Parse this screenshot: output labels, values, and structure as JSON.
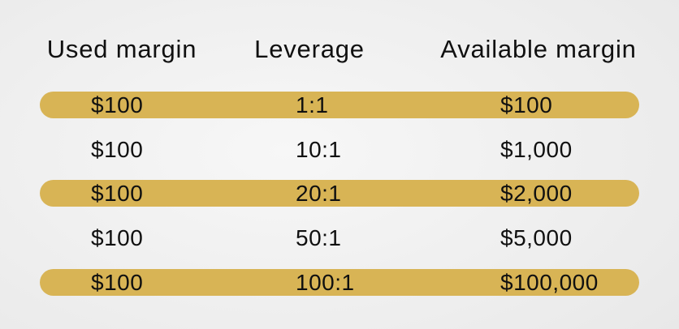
{
  "colors": {
    "gold": "#d8b455",
    "text": "#101010",
    "bg_center": "#f7f7f7",
    "bg_edge": "#dedede"
  },
  "chart_data": {
    "type": "table",
    "title": "",
    "columns": [
      "Used margin",
      "Leverage",
      "Available margin"
    ],
    "rows": [
      [
        "$100",
        "1:1",
        "$100"
      ],
      [
        "$100",
        "10:1",
        "$1,000"
      ],
      [
        "$100",
        "20:1",
        "$2,000"
      ],
      [
        "$100",
        "50:1",
        "$5,000"
      ],
      [
        "$100",
        "100:1",
        "$100,000"
      ]
    ],
    "highlighted_rows": [
      0,
      2,
      4
    ],
    "highlight_color": "#d8b455",
    "layout": {
      "row_style": "alternating gold pill bands",
      "cell_alignment": "left",
      "header_alignment": "center"
    }
  }
}
